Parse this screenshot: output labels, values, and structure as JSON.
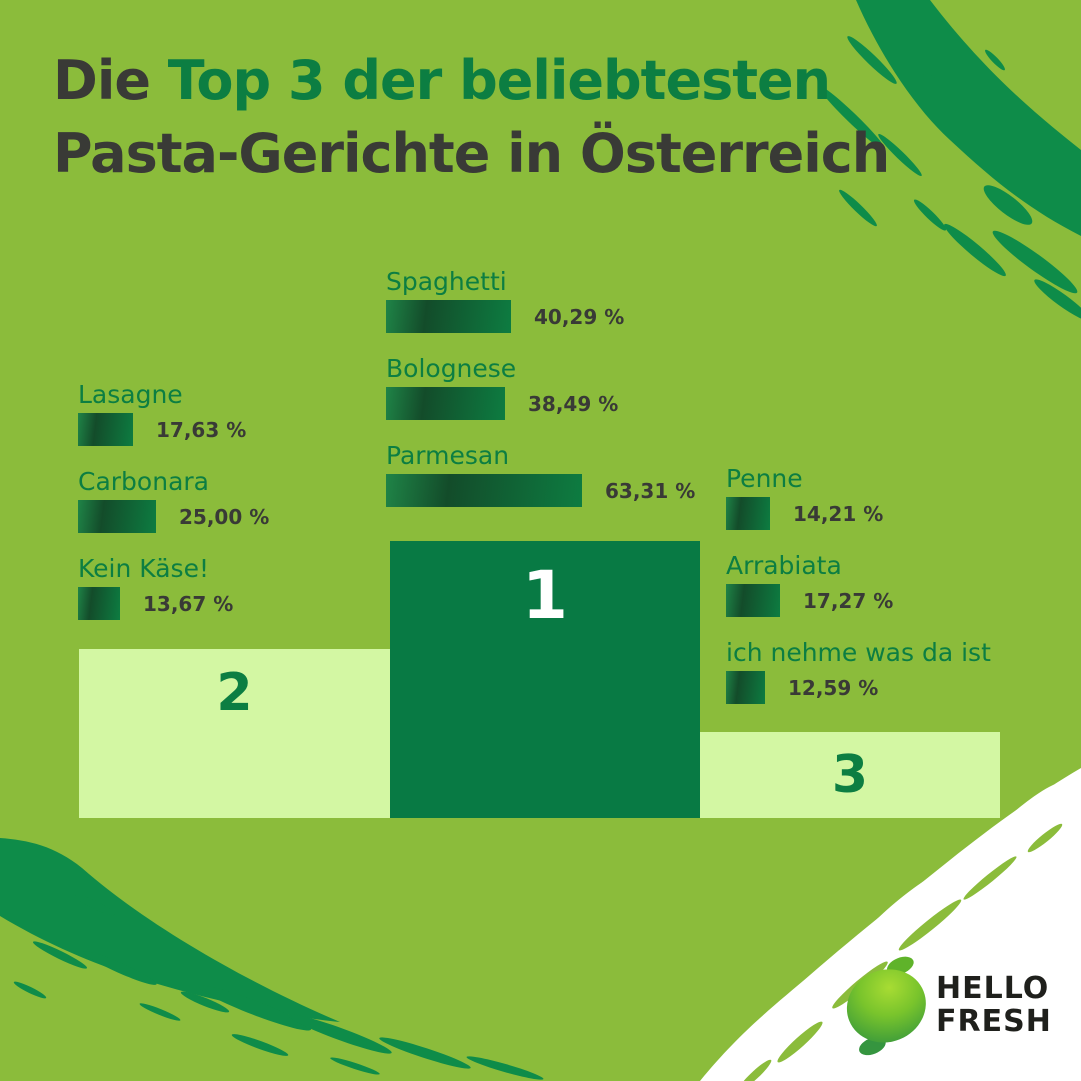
{
  "title": {
    "prefix": "Die ",
    "highlight": "Top 3 der beliebtesten",
    "line2": "Pasta-Gerichte in Österreich"
  },
  "chart_data": {
    "type": "bar",
    "title": "Die Top 3 der beliebtesten Pasta-Gerichte in Österreich",
    "unit": "%",
    "legend_position": "none",
    "grid": false,
    "groups": [
      {
        "rank": "1",
        "podium_color": "#087a44",
        "items": [
          {
            "label": "Spaghetti",
            "value": 40.29,
            "display": "40,29 %"
          },
          {
            "label": "Bolognese",
            "value": 38.49,
            "display": "38,49 %"
          },
          {
            "label": "Parmesan",
            "value": 63.31,
            "display": "63,31 %"
          }
        ]
      },
      {
        "rank": "2",
        "podium_color": "#d3f7a3",
        "items": [
          {
            "label": "Lasagne",
            "value": 17.63,
            "display": "17,63 %"
          },
          {
            "label": "Carbonara",
            "value": 25.0,
            "display": "25,00 %"
          },
          {
            "label": "Kein Käse!",
            "value": 13.67,
            "display": "13,67 %"
          }
        ]
      },
      {
        "rank": "3",
        "podium_color": "#d3f7a3",
        "items": [
          {
            "label": "Penne",
            "value": 14.21,
            "display": "14,21 %"
          },
          {
            "label": "Arrabiata",
            "value": 17.27,
            "display": "17,27 %"
          },
          {
            "label": "ich nehme was da ist",
            "value": 12.59,
            "display": "12,59 %"
          }
        ]
      }
    ]
  },
  "podium": {
    "first": "1",
    "second": "2",
    "third": "3"
  },
  "logo": {
    "line1": "HELLO",
    "line2": "FRESH"
  },
  "colors": {
    "background": "#8bbc3b",
    "brand_green": "#0c7e42",
    "brush_green": "#0e8c49",
    "podium_dark": "#087a44",
    "podium_pale": "#d3f7a3",
    "text_dark": "#393a36",
    "bar_gradient": [
      "#1f8447",
      "#134c2a",
      "#0d7c41"
    ],
    "white": "#ffffff",
    "lime": [
      "#a5d832",
      "#70be2b",
      "#3f9e3a"
    ]
  }
}
